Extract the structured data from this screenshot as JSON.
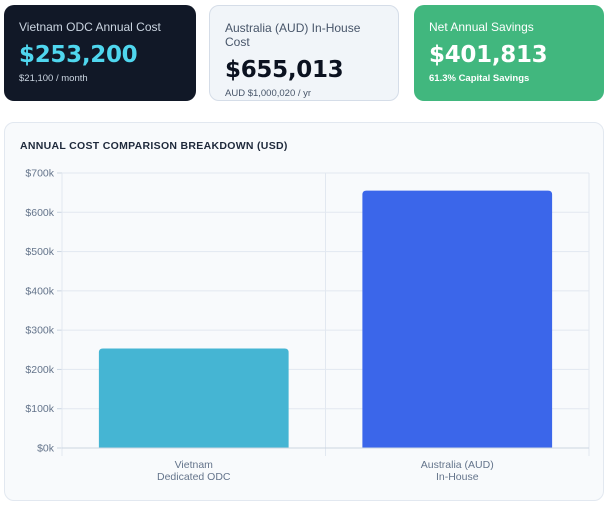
{
  "cards": [
    {
      "label": "Vietnam ODC Annual Cost",
      "value": "$253,200",
      "sub": "$21,100 / month"
    },
    {
      "label": "Australia (AUD) In-House Cost",
      "value": "$655,013",
      "sub": "AUD $1,000,020 / yr"
    },
    {
      "label": "Net Annual Savings",
      "value": "$401,813",
      "sub": "61.3% Capital Savings"
    }
  ],
  "colors": {
    "card_dark": "#111827",
    "card_light": "#f1f5f9",
    "card_green": "#41b77e",
    "accent_cyan": "#4fd6ee",
    "bar_vietnam": "#45b5d3",
    "bar_australia": "#3b66ea"
  },
  "chart_data": {
    "type": "bar",
    "title": "ANNUAL COST COMPARISON BREAKDOWN (USD)",
    "categories": [
      [
        "Vietnam",
        "Dedicated ODC"
      ],
      [
        "Australia (AUD)",
        "In-House"
      ]
    ],
    "values": [
      253200,
      655013
    ],
    "bar_colors": [
      "#45b5d3",
      "#3b66ea"
    ],
    "ylim": [
      0,
      700000
    ],
    "yticks": [
      0,
      100000,
      200000,
      300000,
      400000,
      500000,
      600000,
      700000
    ],
    "ytick_labels": [
      "$0k",
      "$100k",
      "$200k",
      "$300k",
      "$400k",
      "$500k",
      "$600k",
      "$700k"
    ],
    "grid": true,
    "legend": "none"
  }
}
